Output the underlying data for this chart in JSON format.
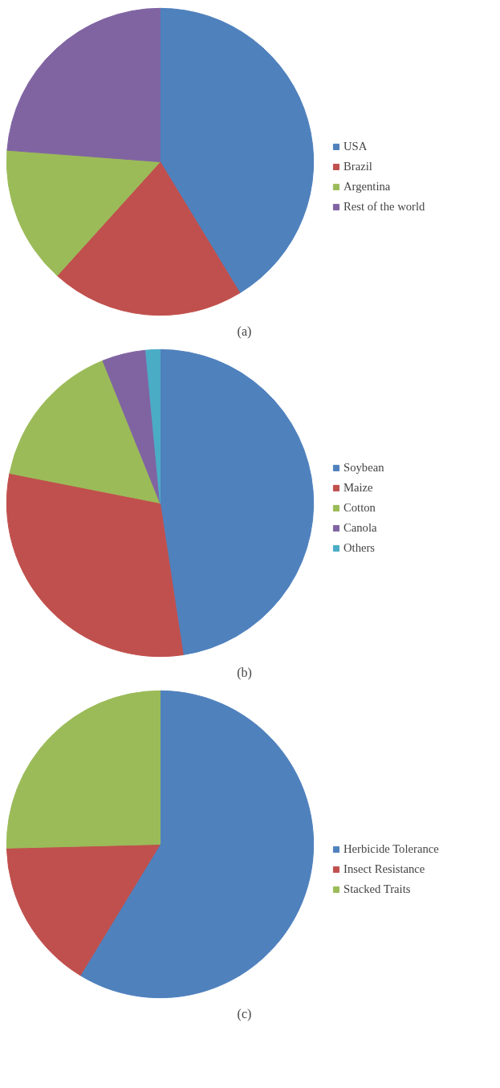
{
  "chart_data": [
    {
      "type": "pie",
      "annotations": [
        "(a)"
      ],
      "legend": "right",
      "categories": [
        "USA",
        "Brazil",
        "Argentina",
        "Rest of the world"
      ],
      "values": [
        41.3,
        20.4,
        14.5,
        23.8
      ],
      "colors": [
        "#4f81bd",
        "#c0504d",
        "#9bbb59",
        "#8064a2"
      ]
    },
    {
      "type": "pie",
      "annotations": [
        "(b)"
      ],
      "legend": "right",
      "categories": [
        "Soybean",
        "Maize",
        "Cotton",
        "Canola",
        "Others"
      ],
      "values": [
        47.6,
        30.5,
        15.8,
        4.6,
        1.5
      ],
      "colors": [
        "#4f81bd",
        "#c0504d",
        "#9bbb59",
        "#8064a2",
        "#4bacc6"
      ]
    },
    {
      "type": "pie",
      "annotations": [
        "(c)"
      ],
      "legend": "right",
      "categories": [
        "Herbicide Tolerance",
        "Insect Resistance",
        "Stacked Traits"
      ],
      "values": [
        58.7,
        15.9,
        25.4
      ],
      "colors": [
        "#4f81bd",
        "#c0504d",
        "#9bbb59"
      ]
    }
  ]
}
